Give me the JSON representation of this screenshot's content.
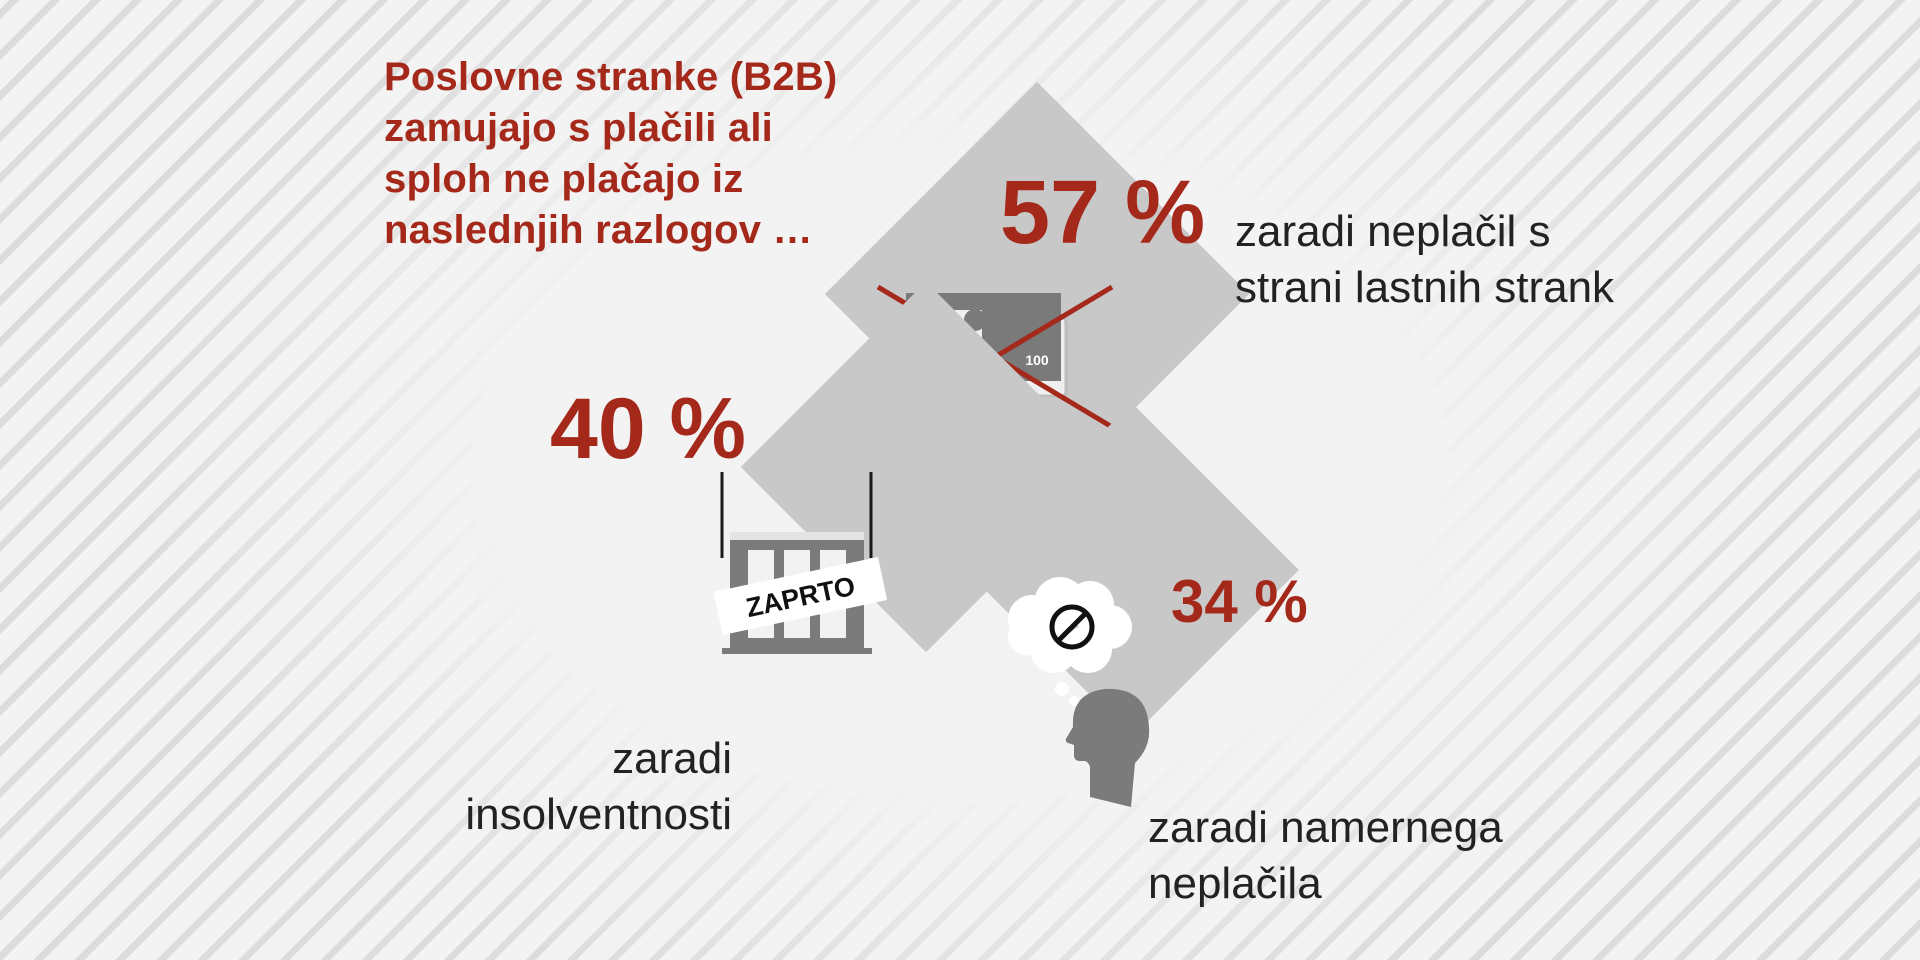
{
  "title": "Poslovne stranke (B2B) zamujajo s plačili ali sploh ne plačajo iz naslednjih razlogov …",
  "items": [
    {
      "value": "57 %",
      "text": "zaradi neplačil s strani lastnih strank"
    },
    {
      "value": "40 %",
      "text": "zaradi insolventnosti"
    },
    {
      "value": "34 %",
      "text": "zaradi namernega neplačila"
    }
  ],
  "icons": {
    "invoice_amount": "100",
    "closed_sign": "ZAPRTO",
    "item1_icon": "invoice-stop-hand-icon",
    "item2_icon": "closed-building-icon",
    "item3_icon": "thinking-head-no-symbol-icon"
  },
  "colors": {
    "accent": "#a5291a",
    "diamond": "#c8c8c9",
    "background": "#f3f3f3",
    "text": "#222222"
  }
}
